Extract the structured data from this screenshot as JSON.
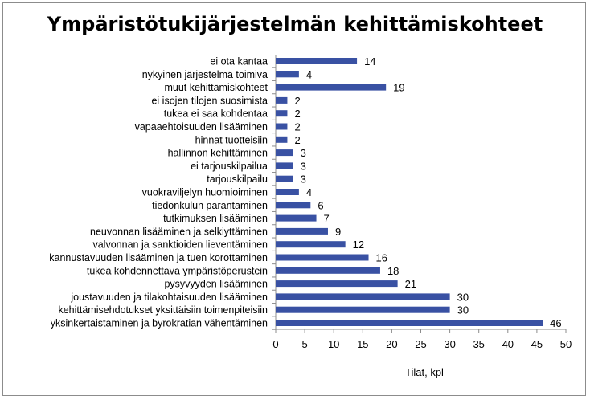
{
  "chart_data": {
    "type": "bar",
    "orientation": "horizontal",
    "title": "Ympäristötukijärjestelmän kehittämiskohteet",
    "xlabel": "Tilat, kpl",
    "ylabel": "",
    "xlim": [
      0,
      50
    ],
    "xticks": [
      0,
      5,
      10,
      15,
      20,
      25,
      30,
      35,
      40,
      45,
      50
    ],
    "grid": false,
    "legend": "none",
    "bar_color": "#3951a3",
    "categories": [
      "ei ota kantaa",
      "nykyinen järjestelmä toimiva",
      "muut kehittämiskohteet",
      "ei isojen tilojen suosimista",
      "tukea ei saa kohdentaa",
      "vapaaehtoisuuden lisääminen",
      "hinnat tuotteisiin",
      "hallinnon kehittäminen",
      "ei tarjouskilpailua",
      "tarjouskilpailu",
      "vuokraviljelyn huomioiminen",
      "tiedonkulun parantaminen",
      "tutkimuksen lisääminen",
      "neuvonnan lisääminen ja selkiyttäminen",
      "valvonnan ja sanktioiden lieventäminen",
      "kannustavuuden lisääminen ja tuen korottaminen",
      "tukea kohdennettava ympäristöperustein",
      "pysyvyyden lisääminen",
      "joustavuuden ja tilakohtaisuuden lisääminen",
      "kehittämisehdotukset yksittäisiin toimenpiteisiin",
      "yksinkertaistaminen ja byrokratian vähentäminen"
    ],
    "values": [
      14,
      4,
      19,
      2,
      2,
      2,
      2,
      3,
      3,
      3,
      4,
      6,
      7,
      9,
      12,
      16,
      18,
      21,
      30,
      30,
      46
    ]
  }
}
